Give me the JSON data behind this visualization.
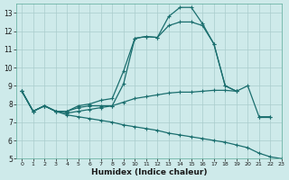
{
  "title": "",
  "xlabel": "Humidex (Indice chaleur)",
  "bg_color": "#ceeaea",
  "grid_color": "#aacccc",
  "line_color": "#1a6e6e",
  "x": [
    0,
    1,
    2,
    3,
    4,
    5,
    6,
    7,
    8,
    9,
    10,
    11,
    12,
    13,
    14,
    15,
    16,
    17,
    18,
    19,
    20,
    21,
    22,
    23
  ],
  "line1": [
    8.7,
    7.6,
    7.9,
    7.6,
    7.6,
    7.9,
    8.0,
    8.2,
    8.3,
    9.8,
    11.6,
    11.7,
    11.65,
    12.8,
    13.3,
    13.3,
    12.4,
    11.3,
    9.0,
    8.7,
    null,
    null,
    null,
    null
  ],
  "line2": [
    8.7,
    7.6,
    7.9,
    7.6,
    7.6,
    7.8,
    7.9,
    7.9,
    7.9,
    9.1,
    11.6,
    11.7,
    11.65,
    12.3,
    12.5,
    12.5,
    12.3,
    11.3,
    9.0,
    8.7,
    null,
    7.3,
    7.3,
    null
  ],
  "line3": [
    8.7,
    7.6,
    7.9,
    7.6,
    7.5,
    7.6,
    7.7,
    7.8,
    7.9,
    8.1,
    8.3,
    8.4,
    8.5,
    8.6,
    8.65,
    8.65,
    8.7,
    8.75,
    8.75,
    8.7,
    9.0,
    7.3,
    7.3,
    null
  ],
  "line4": [
    8.7,
    7.6,
    7.9,
    7.6,
    7.4,
    7.3,
    7.2,
    7.1,
    7.0,
    6.85,
    6.75,
    6.65,
    6.55,
    6.4,
    6.3,
    6.2,
    6.1,
    6.0,
    5.9,
    5.75,
    5.6,
    5.3,
    5.1,
    5.0
  ],
  "ylim": [
    5,
    13.5
  ],
  "xlim": [
    -0.5,
    23
  ],
  "yticks": [
    5,
    6,
    7,
    8,
    9,
    10,
    11,
    12,
    13
  ],
  "xticks": [
    0,
    1,
    2,
    3,
    4,
    5,
    6,
    7,
    8,
    9,
    10,
    11,
    12,
    13,
    14,
    15,
    16,
    17,
    18,
    19,
    20,
    21,
    22,
    23
  ]
}
